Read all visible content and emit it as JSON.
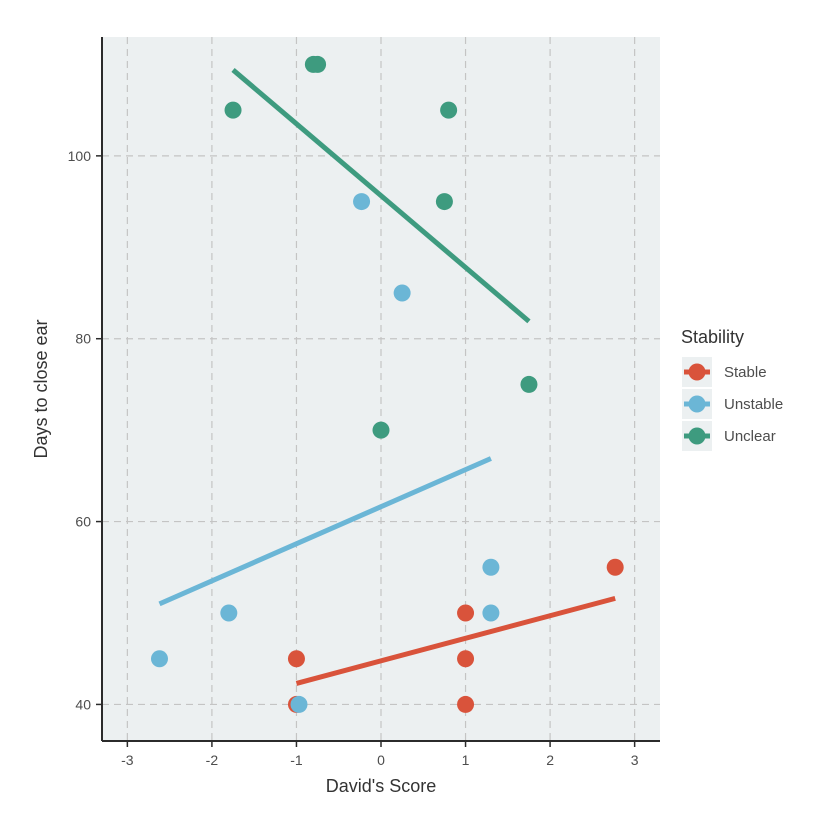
{
  "chart_data": {
    "type": "scatter",
    "xlabel": "David's Score",
    "ylabel": "Days to close ear",
    "xlim": [
      -3.3,
      3.3
    ],
    "ylim": [
      36,
      113
    ],
    "x_ticks": [
      "-3",
      "-2",
      "-1",
      "0",
      "1",
      "2",
      "3"
    ],
    "y_ticks": [
      "40",
      "60",
      "80",
      "100"
    ],
    "grid": true,
    "legend": {
      "title": "Stability",
      "position": "right"
    },
    "series": [
      {
        "name": "Stable",
        "color": "#d9533b",
        "points": [
          {
            "x": -1.0,
            "y": 45
          },
          {
            "x": -1.0,
            "y": 40
          },
          {
            "x": 1.0,
            "y": 50
          },
          {
            "x": 1.0,
            "y": 45
          },
          {
            "x": 1.0,
            "y": 40
          },
          {
            "x": 2.77,
            "y": 55
          }
        ],
        "trend": {
          "x": [
            -1.0,
            2.77
          ],
          "y": [
            42.3,
            51.6
          ]
        }
      },
      {
        "name": "Unstable",
        "color": "#6bb6d6",
        "points": [
          {
            "x": -2.62,
            "y": 45
          },
          {
            "x": -1.8,
            "y": 50
          },
          {
            "x": -0.97,
            "y": 40
          },
          {
            "x": -0.23,
            "y": 95
          },
          {
            "x": 0.25,
            "y": 85
          },
          {
            "x": 1.3,
            "y": 55
          },
          {
            "x": 1.3,
            "y": 50
          }
        ],
        "trend": {
          "x": [
            -2.62,
            1.3
          ],
          "y": [
            51.0,
            66.9
          ]
        }
      },
      {
        "name": "Unclear",
        "color": "#3e9b7f",
        "points": [
          {
            "x": -1.75,
            "y": 105
          },
          {
            "x": -0.8,
            "y": 110
          },
          {
            "x": -0.75,
            "y": 110
          },
          {
            "x": 0.8,
            "y": 105
          },
          {
            "x": 0.75,
            "y": 95
          },
          {
            "x": 1.75,
            "y": 75
          },
          {
            "x": 0.0,
            "y": 70
          }
        ],
        "trend": {
          "x": [
            -1.75,
            1.75
          ],
          "y": [
            109.4,
            81.9
          ]
        }
      }
    ]
  }
}
